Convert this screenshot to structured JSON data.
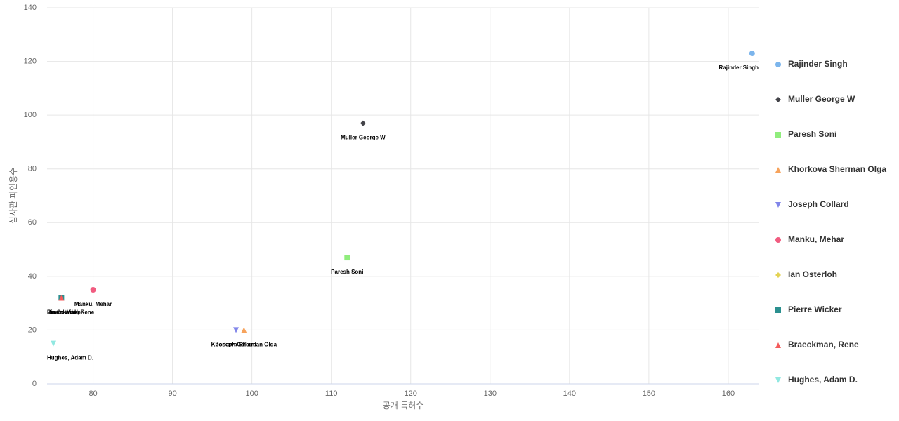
{
  "chart_data": {
    "type": "scatter",
    "x_label": "공개 특허수",
    "y_label": "심사관 피인용수",
    "xlim": [
      74.2,
      163.9
    ],
    "ylim": [
      0,
      140
    ],
    "xticks": [
      80,
      90,
      100,
      110,
      120,
      130,
      140,
      150,
      160
    ],
    "yticks": [
      0,
      20,
      40,
      60,
      80,
      100,
      120,
      140
    ],
    "grid": true,
    "legend": "right",
    "series": [
      {
        "name": "Rajinder Singh",
        "color": "#7cb5ec",
        "marker": "circle",
        "x": [
          163
        ],
        "values": [
          123
        ]
      },
      {
        "name": "Muller George W",
        "color": "#434348",
        "marker": "diamond",
        "x": [
          114
        ],
        "values": [
          97
        ]
      },
      {
        "name": "Paresh Soni",
        "color": "#90ed7d",
        "marker": "square",
        "x": [
          112
        ],
        "values": [
          47
        ]
      },
      {
        "name": "Khorkova Sherman Olga",
        "color": "#f7a35c",
        "marker": "triangle",
        "x": [
          99
        ],
        "values": [
          20
        ]
      },
      {
        "name": "Joseph Collard",
        "color": "#8085e9",
        "marker": "triangle-down",
        "x": [
          98
        ],
        "values": [
          20
        ]
      },
      {
        "name": "Manku, Mehar",
        "color": "#f15c80",
        "marker": "circle",
        "x": [
          80
        ],
        "values": [
          35
        ]
      },
      {
        "name": "Ian Osterloh",
        "color": "#e4d354",
        "marker": "diamond",
        "x": [
          76
        ],
        "values": [
          32
        ]
      },
      {
        "name": "Pierre Wicker",
        "color": "#2b908f",
        "marker": "square",
        "x": [
          76
        ],
        "values": [
          32
        ]
      },
      {
        "name": "Braeckman, Rene",
        "color": "#f45b5b",
        "marker": "triangle",
        "x": [
          76
        ],
        "values": [
          32
        ]
      },
      {
        "name": "Hughes, Adam D.",
        "color": "#91e8e1",
        "marker": "triangle-down",
        "x": [
          75
        ],
        "values": [
          15
        ]
      }
    ]
  }
}
